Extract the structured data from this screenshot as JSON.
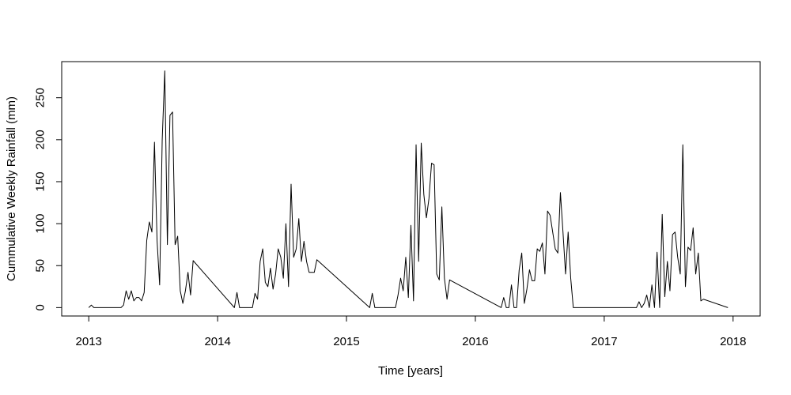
{
  "chart_data": {
    "type": "line",
    "title": "",
    "xlabel": "Time [years]",
    "ylabel": "Cummulative Weekly Rainfall (mm)",
    "xlim": [
      2012.79,
      2018.21
    ],
    "ylim": [
      -10,
      293
    ],
    "xticks": [
      2013,
      2014,
      2015,
      2016,
      2017,
      2018
    ],
    "yticks": [
      0,
      50,
      100,
      150,
      200,
      250
    ],
    "xtick_labels": [
      "2013",
      "2014",
      "2015",
      "2016",
      "2017",
      "2018"
    ],
    "ytick_labels": [
      "0",
      "50",
      "100",
      "150",
      "200",
      "250"
    ],
    "grid": false,
    "line_color": "#000000",
    "series": [
      {
        "x": [
          2013.0,
          2013.02,
          2013.04,
          2013.06,
          2013.25,
          2013.27,
          2013.29,
          2013.31,
          2013.33,
          2013.35,
          2013.37,
          2013.39,
          2013.41,
          2013.43,
          2013.45,
          2013.47,
          2013.49,
          2013.51,
          2013.53,
          2013.55,
          2013.57,
          2013.59,
          2013.61,
          2013.63,
          2013.65,
          2013.67,
          2013.69,
          2013.71,
          2013.73,
          2013.75,
          2013.77,
          2013.79,
          2013.81,
          2014.13,
          2014.15,
          2014.17,
          2014.27,
          2014.29,
          2014.31,
          2014.33,
          2014.35,
          2014.37,
          2014.39,
          2014.41,
          2014.43,
          2014.45,
          2014.47,
          2014.49,
          2014.51,
          2014.53,
          2014.55,
          2014.57,
          2014.59,
          2014.61,
          2014.63,
          2014.65,
          2014.67,
          2014.69,
          2014.71,
          2014.73,
          2014.75,
          2014.77,
          2015.18,
          2015.2,
          2015.22,
          2015.38,
          2015.4,
          2015.42,
          2015.44,
          2015.46,
          2015.48,
          2015.5,
          2015.52,
          2015.54,
          2015.56,
          2015.58,
          2015.6,
          2015.62,
          2015.64,
          2015.66,
          2015.68,
          2015.7,
          2015.72,
          2015.74,
          2015.76,
          2015.78,
          2015.8,
          2016.2,
          2016.22,
          2016.24,
          2016.26,
          2016.28,
          2016.3,
          2016.32,
          2016.34,
          2016.36,
          2016.38,
          2016.4,
          2016.42,
          2016.44,
          2016.46,
          2016.48,
          2016.5,
          2016.52,
          2016.54,
          2016.56,
          2016.58,
          2016.6,
          2016.62,
          2016.64,
          2016.66,
          2016.68,
          2016.7,
          2016.72,
          2016.74,
          2016.76,
          2017.25,
          2017.27,
          2017.29,
          2017.31,
          2017.33,
          2017.35,
          2017.37,
          2017.39,
          2017.41,
          2017.43,
          2017.45,
          2017.47,
          2017.49,
          2017.51,
          2017.53,
          2017.55,
          2017.57,
          2017.59,
          2017.61,
          2017.63,
          2017.65,
          2017.67,
          2017.69,
          2017.71,
          2017.73,
          2017.75,
          2017.77,
          2017.96
        ],
        "y": [
          0,
          3,
          0,
          0,
          0,
          3,
          20,
          10,
          20,
          8,
          12,
          12,
          8,
          18,
          80,
          102,
          90,
          197,
          80,
          27,
          200,
          282,
          75,
          229,
          233,
          75,
          85,
          20,
          5,
          20,
          42,
          15,
          56,
          0,
          18,
          0,
          0,
          17,
          10,
          55,
          70,
          30,
          25,
          47,
          22,
          40,
          70,
          60,
          35,
          100,
          25,
          147,
          60,
          70,
          106,
          55,
          79,
          55,
          42,
          42,
          42,
          57,
          0,
          17,
          0,
          0,
          15,
          35,
          20,
          60,
          12,
          98,
          8,
          194,
          55,
          196,
          135,
          107,
          130,
          172,
          170,
          40,
          33,
          120,
          35,
          10,
          33,
          0,
          12,
          0,
          0,
          27,
          0,
          0,
          45,
          65,
          5,
          22,
          45,
          32,
          32,
          70,
          67,
          77,
          40,
          115,
          110,
          90,
          70,
          65,
          137,
          90,
          40,
          90,
          35,
          0,
          0,
          7,
          0,
          5,
          15,
          0,
          27,
          0,
          66,
          0,
          111,
          13,
          55,
          20,
          87,
          90,
          60,
          40,
          194,
          25,
          72,
          68,
          95,
          40,
          65,
          8,
          10,
          0
        ]
      }
    ]
  }
}
